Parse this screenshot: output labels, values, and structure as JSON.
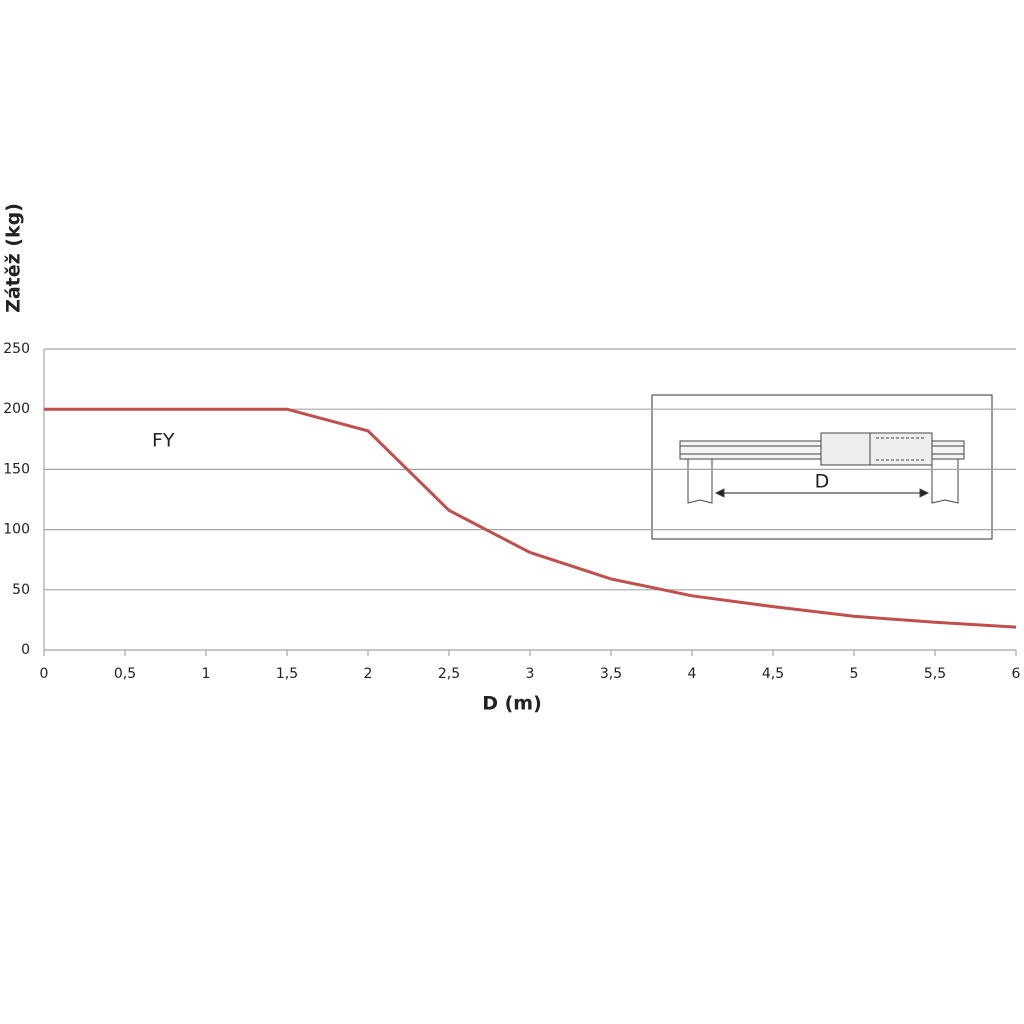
{
  "chart_data": {
    "type": "line",
    "y_label": "Zátěž (kg)",
    "x_label": "D (m)",
    "x": [
      0,
      0.5,
      1,
      1.5,
      2,
      2.5,
      3,
      3.5,
      4,
      4.5,
      5,
      5.5,
      6
    ],
    "series": [
      {
        "name": "FY",
        "color": "#c0504d",
        "values": [
          200,
          200,
          200,
          200,
          182,
          116,
          81,
          59,
          45,
          36,
          28,
          23,
          19
        ]
      }
    ],
    "xlim": [
      0,
      6
    ],
    "xticks": [
      0,
      {
        "value": 0.5,
        "label": "0,5"
      },
      1,
      {
        "value": 1.5,
        "label": "1,5"
      },
      2,
      {
        "value": 2.5,
        "label": "2,5"
      },
      3,
      {
        "value": 3.5,
        "label": "3,5"
      },
      4,
      {
        "value": 4.5,
        "label": "4,5"
      },
      5,
      {
        "value": 5.5,
        "label": "5,5"
      },
      6
    ],
    "ylim": [
      0,
      250
    ],
    "yticks": [
      0,
      50,
      100,
      150,
      200,
      250
    ],
    "grid": true,
    "inset": {
      "label": "D"
    }
  }
}
